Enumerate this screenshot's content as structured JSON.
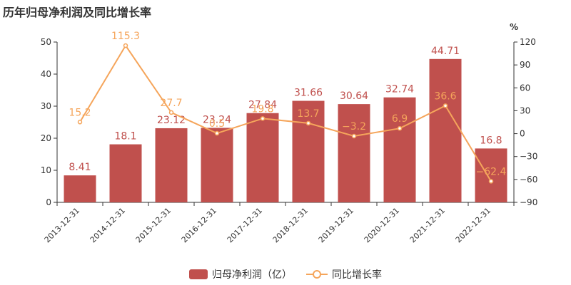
{
  "chart_data": {
    "type": "bar",
    "title": "历年归母净利润及同比增长率",
    "categories": [
      "2013-12-31",
      "2014-12-31",
      "2015-12-31",
      "2016-12-31",
      "2017-12-31",
      "2018-12-31",
      "2019-12-31",
      "2020-12-31",
      "2021-12-31",
      "2022-12-31"
    ],
    "series": [
      {
        "name": "归母净利润（亿）",
        "type": "bar",
        "axis": "left",
        "values": [
          8.41,
          18.1,
          23.12,
          23.24,
          27.84,
          31.66,
          30.64,
          32.74,
          44.71,
          16.8
        ],
        "labels": [
          "8.41",
          "18.1",
          "23.12",
          "23.24",
          "27.84",
          "31.66",
          "30.64",
          "32.74",
          "44.71",
          "16.8"
        ],
        "color": "#c0504d"
      },
      {
        "name": "同比增长率",
        "type": "line",
        "axis": "right",
        "values": [
          15.2,
          115.3,
          27.7,
          0.5,
          19.8,
          13.7,
          -3.2,
          6.9,
          36.6,
          -62.4
        ],
        "labels": [
          "15.2",
          "115.3",
          "27.7",
          "0.5",
          "19.8",
          "13.7",
          "−3.2",
          "6.9",
          "36.6",
          "−62.4"
        ],
        "color": "#f5a55b"
      }
    ],
    "y_left": {
      "min": 0,
      "max": 50,
      "ticks": [
        0,
        10,
        20,
        30,
        40,
        50
      ]
    },
    "y_right": {
      "min": -90,
      "max": 120,
      "unit": "%",
      "ticks": [
        -90,
        -60,
        -30,
        0,
        30,
        60,
        90,
        120
      ],
      "tick_labels": [
        "−90",
        "−60",
        "−30",
        "0",
        "30",
        "60",
        "90",
        "120"
      ]
    },
    "grid": false,
    "legend": "bottom"
  }
}
